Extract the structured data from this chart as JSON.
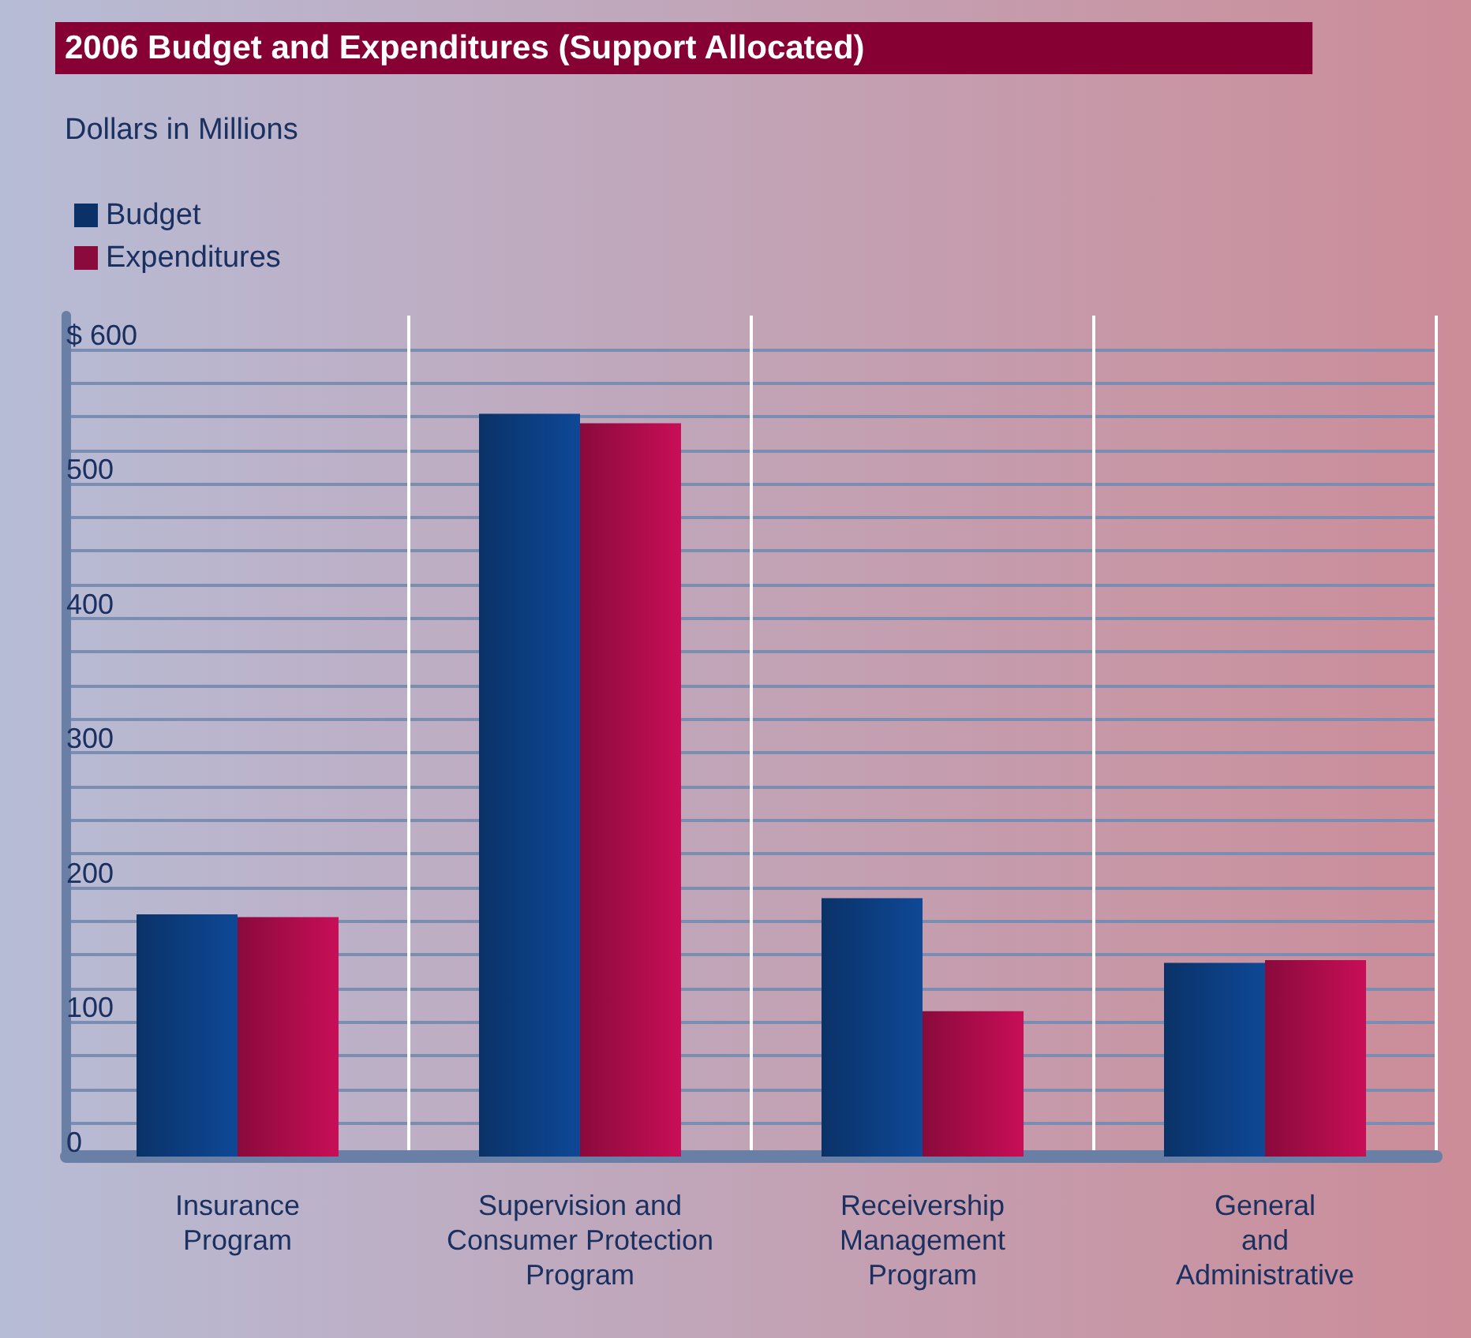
{
  "chart_data": {
    "type": "bar",
    "title": "2006 Budget and Expenditures (Support Allocated)",
    "subtitle": "Dollars in Millions",
    "categories": [
      "Insurance\nProgram",
      "Supervision and\nConsumer Protection\nProgram",
      "Receivership\nManagement\nProgram",
      "General\nand\nAdministrative"
    ],
    "series": [
      {
        "name": "Budget",
        "color": "#0a3268",
        "values": [
          180,
          552,
          192,
          144
        ]
      },
      {
        "name": "Expenditures",
        "color": "#8a0a3c",
        "values": [
          178,
          545,
          108,
          146
        ]
      }
    ],
    "ylim": [
      0,
      625
    ],
    "yticks": [
      0,
      {
        "value": 25,
        "label": null
      },
      {
        "value": 50,
        "label": null
      },
      {
        "value": 75,
        "label": null
      },
      100,
      {
        "value": 125,
        "label": null
      },
      {
        "value": 150,
        "label": null
      },
      {
        "value": 175,
        "label": null
      },
      200,
      {
        "value": 225,
        "label": null
      },
      {
        "value": 250,
        "label": null
      },
      {
        "value": 275,
        "label": null
      },
      300,
      {
        "value": 325,
        "label": null
      },
      {
        "value": 350,
        "label": null
      },
      {
        "value": 375,
        "label": null
      },
      400,
      {
        "value": 425,
        "label": null
      },
      {
        "value": 450,
        "label": null
      },
      {
        "value": 475,
        "label": null
      },
      500,
      {
        "value": 525,
        "label": null
      },
      {
        "value": 550,
        "label": null
      },
      {
        "value": 575,
        "label": null
      },
      {
        "value": 600,
        "label": "$ 600"
      }
    ],
    "grid": true,
    "legend": "top left"
  }
}
